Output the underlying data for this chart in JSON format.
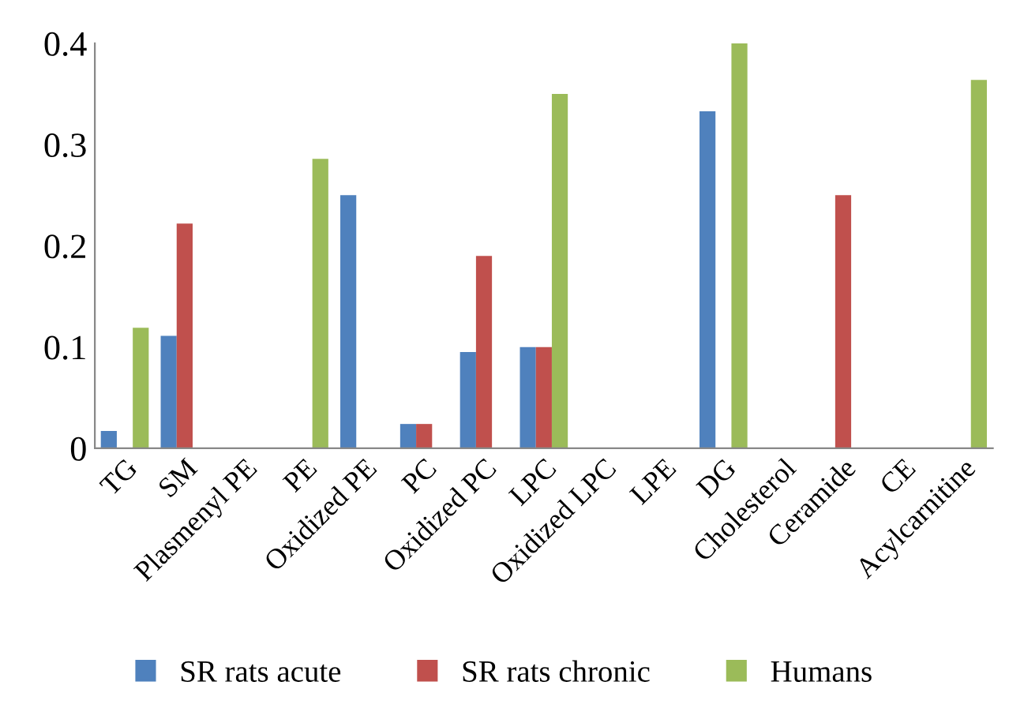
{
  "chart_data": {
    "type": "bar",
    "categories": [
      "TG",
      "SM",
      "Plasmenyl PE",
      "PE",
      "Oxidized PE",
      "PC",
      "Oxidized PC",
      "LPC",
      "Oxidized LPC",
      "LPE",
      "DG",
      "Cholesterol",
      "Ceramide",
      "CE",
      "Acylcarnitine"
    ],
    "series": [
      {
        "name": "SR rats acute",
        "color": "#4f81bd",
        "values": [
          0.017,
          0.111,
          null,
          null,
          0.25,
          0.024,
          0.095,
          0.1,
          null,
          null,
          0.333,
          null,
          null,
          null,
          null
        ]
      },
      {
        "name": "SR rats chronic",
        "color": "#c0504d",
        "values": [
          null,
          0.222,
          null,
          null,
          null,
          0.024,
          0.19,
          0.1,
          null,
          null,
          null,
          null,
          0.25,
          null,
          null
        ]
      },
      {
        "name": "Humans",
        "color": "#9bbb59",
        "values": [
          0.119,
          null,
          null,
          0.286,
          null,
          null,
          null,
          0.35,
          null,
          null,
          0.4,
          null,
          null,
          null,
          0.364
        ]
      }
    ],
    "ylim": [
      0,
      0.4
    ],
    "yticks": [
      0,
      0.1,
      0.2,
      0.3,
      0.4
    ],
    "grid": false,
    "legend": "bottom"
  }
}
